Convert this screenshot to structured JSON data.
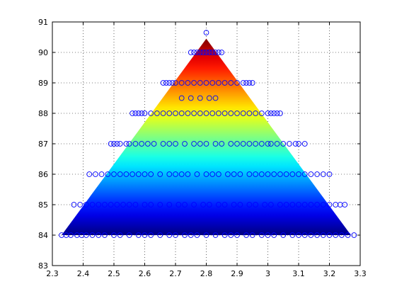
{
  "chart_data": {
    "type": "scatter",
    "title": "",
    "xlabel": "",
    "ylabel": "",
    "xlim": [
      2.3,
      3.3
    ],
    "ylim": [
      83,
      91
    ],
    "grid": true,
    "x_ticks": [
      "2.3",
      "2.4",
      "2.5",
      "2.6",
      "2.7",
      "2.8",
      "2.9",
      "3",
      "3.1",
      "3.2",
      "3.3"
    ],
    "y_ticks": [
      "83",
      "84",
      "85",
      "86",
      "87",
      "88",
      "89",
      "90",
      "91"
    ],
    "surface": {
      "kind": "filled triangular colour surface, value increases with y",
      "colormap": "jet",
      "vertices": [
        [
          2.33,
          84.0
        ],
        [
          3.27,
          84.0
        ],
        [
          2.8,
          90.45
        ]
      ]
    },
    "marker": {
      "shape": "open circle",
      "color": "#0000ff"
    },
    "series": [
      {
        "x": [
          2.33,
          2.345,
          2.36,
          2.38,
          2.395,
          2.41,
          2.43,
          2.45,
          2.47,
          2.5,
          2.52,
          2.55,
          2.58,
          2.6,
          2.62,
          2.65,
          2.68,
          2.7,
          2.73,
          2.75,
          2.77,
          2.8,
          2.83,
          2.86,
          2.88,
          2.9,
          2.93,
          2.95,
          2.98,
          3.0,
          3.02,
          3.05,
          3.08,
          3.1,
          3.12,
          3.14,
          3.16,
          3.18,
          3.2,
          3.22,
          3.24,
          3.26,
          3.28,
          2.37,
          2.39,
          2.41,
          2.43,
          2.45,
          2.47,
          2.49,
          2.51,
          2.53,
          2.55,
          2.57,
          2.6,
          2.62,
          2.65,
          2.68,
          2.71,
          2.73,
          2.76,
          2.79,
          2.81,
          2.84,
          2.86,
          2.89,
          2.91,
          2.94,
          2.96,
          2.99,
          3.01,
          3.04,
          3.06,
          3.08,
          3.1,
          3.12,
          3.14,
          3.16,
          3.18,
          3.2,
          3.22,
          3.235,
          3.25,
          2.42,
          2.44,
          2.46,
          2.48,
          2.5,
          2.52,
          2.54,
          2.56,
          2.58,
          2.6,
          2.62,
          2.65,
          2.68,
          2.7,
          2.72,
          2.74,
          2.77,
          2.8,
          2.82,
          2.84,
          2.87,
          2.89,
          2.91,
          2.94,
          2.96,
          2.98,
          3.0,
          3.02,
          3.04,
          3.06,
          3.08,
          3.1,
          3.12,
          3.14,
          3.16,
          3.18,
          3.2,
          2.49,
          2.5,
          2.51,
          2.52,
          2.54,
          2.55,
          2.57,
          2.59,
          2.61,
          2.63,
          2.66,
          2.68,
          2.7,
          2.73,
          2.76,
          2.78,
          2.8,
          2.83,
          2.85,
          2.88,
          2.9,
          2.92,
          2.94,
          2.96,
          2.98,
          3.0,
          3.01,
          3.03,
          3.05,
          3.07,
          3.09,
          3.1,
          3.12,
          2.56,
          2.57,
          2.58,
          2.59,
          2.6,
          2.62,
          2.64,
          2.66,
          2.68,
          2.7,
          2.72,
          2.74,
          2.76,
          2.78,
          2.8,
          2.82,
          2.84,
          2.86,
          2.88,
          2.9,
          2.92,
          2.94,
          2.96,
          2.98,
          3.0,
          3.01,
          3.02,
          3.03,
          3.04,
          2.72,
          2.75,
          2.78,
          2.81,
          2.83,
          2.66,
          2.67,
          2.68,
          2.69,
          2.7,
          2.72,
          2.74,
          2.76,
          2.78,
          2.8,
          2.82,
          2.84,
          2.86,
          2.88,
          2.9,
          2.92,
          2.93,
          2.94,
          2.95,
          2.75,
          2.76,
          2.77,
          2.78,
          2.79,
          2.8,
          2.81,
          2.82,
          2.83,
          2.84,
          2.85,
          2.8
        ],
        "y": [
          84,
          84,
          84,
          84,
          84,
          84,
          84,
          84,
          84,
          84,
          84,
          84,
          84,
          84,
          84,
          84,
          84,
          84,
          84,
          84,
          84,
          84,
          84,
          84,
          84,
          84,
          84,
          84,
          84,
          84,
          84,
          84,
          84,
          84,
          84,
          84,
          84,
          84,
          84,
          84,
          84,
          84,
          84,
          85,
          85,
          85,
          85,
          85,
          85,
          85,
          85,
          85,
          85,
          85,
          85,
          85,
          85,
          85,
          85,
          85,
          85,
          85,
          85,
          85,
          85,
          85,
          85,
          85,
          85,
          85,
          85,
          85,
          85,
          85,
          85,
          85,
          85,
          85,
          85,
          85,
          85,
          85,
          85,
          86,
          86,
          86,
          86,
          86,
          86,
          86,
          86,
          86,
          86,
          86,
          86,
          86,
          86,
          86,
          86,
          86,
          86,
          86,
          86,
          86,
          86,
          86,
          86,
          86,
          86,
          86,
          86,
          86,
          86,
          86,
          86,
          86,
          86,
          86,
          86,
          86,
          87,
          87,
          87,
          87,
          87,
          87,
          87,
          87,
          87,
          87,
          87,
          87,
          87,
          87,
          87,
          87,
          87,
          87,
          87,
          87,
          87,
          87,
          87,
          87,
          87,
          87,
          87,
          87,
          87,
          87,
          87,
          87,
          87,
          88,
          88,
          88,
          88,
          88,
          88,
          88,
          88,
          88,
          88,
          88,
          88,
          88,
          88,
          88,
          88,
          88,
          88,
          88,
          88,
          88,
          88,
          88,
          88,
          88,
          88,
          88,
          88,
          88,
          88.5,
          88.5,
          88.5,
          88.5,
          88.5,
          89,
          89,
          89,
          89,
          89,
          89,
          89,
          89,
          89,
          89,
          89,
          89,
          89,
          89,
          89,
          89,
          89,
          89,
          89,
          90,
          90,
          90,
          90,
          90,
          90,
          90,
          90,
          90,
          90,
          90,
          90.65
        ]
      }
    ]
  }
}
